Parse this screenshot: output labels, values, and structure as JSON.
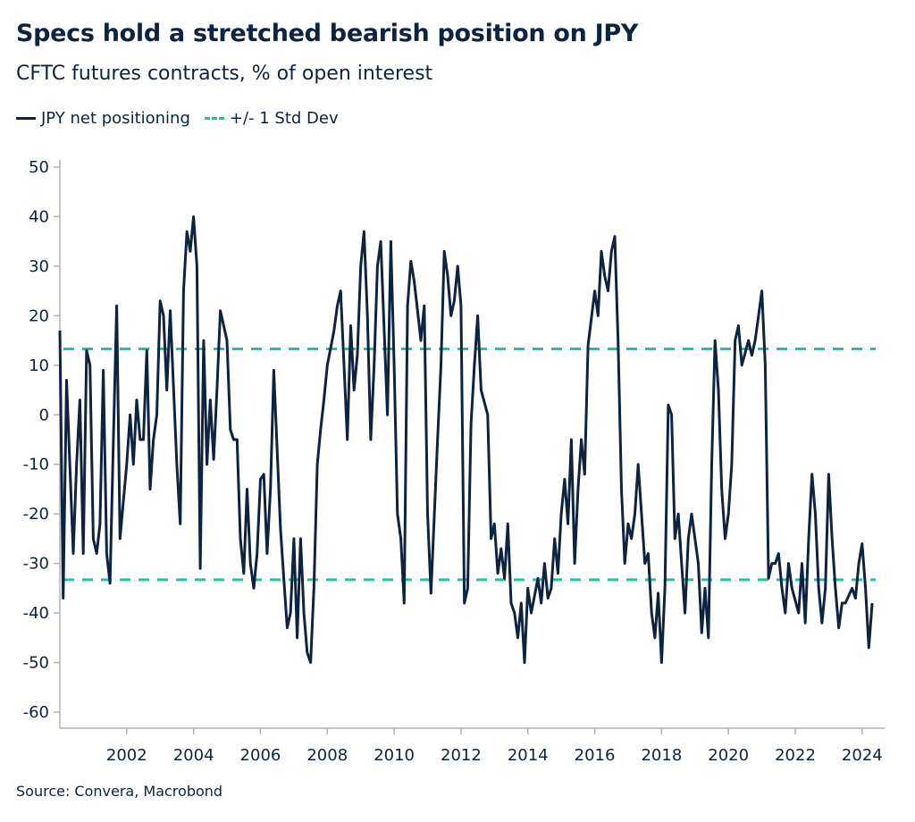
{
  "header": {
    "title": "Specs hold a stretched bearish position on JPY",
    "subtitle": "CFTC futures contracts, % of open interest"
  },
  "legend": {
    "series_label": "JPY net positioning",
    "band_label": "+/- 1 Std Dev"
  },
  "footer": {
    "source": "Source: Convera, Macrobond"
  },
  "colors": {
    "series": "#0d2340",
    "band": "#17c6ae",
    "axis": "#b0b0b0"
  },
  "chart_data": {
    "type": "line",
    "title": "Specs hold a stretched bearish position on JPY",
    "subtitle": "CFTC futures contracts, % of open interest",
    "xlabel": "",
    "ylabel": "",
    "xlim": [
      2000.0,
      2024.6
    ],
    "ylim": [
      -60,
      50
    ],
    "grid": false,
    "legend_position": "top-left",
    "y_ticks": [
      50,
      40,
      30,
      20,
      10,
      0,
      -10,
      -20,
      -30,
      -40,
      -50,
      -60
    ],
    "y_tick_labels": [
      "50",
      "40",
      "30",
      "20",
      "10",
      "0",
      "-10",
      "-20",
      "-30",
      "-40",
      "-50",
      "-60"
    ],
    "x_ticks": [
      2002,
      2004,
      2006,
      2008,
      2010,
      2012,
      2014,
      2016,
      2018,
      2020,
      2022,
      2024
    ],
    "x_tick_labels": [
      "2002",
      "2004",
      "2006",
      "2008",
      "2010",
      "2012",
      "2014",
      "2016",
      "2018",
      "2020",
      "2022",
      "2024"
    ],
    "reference_lines": [
      {
        "name": "+/- 1 Std Dev",
        "value": 13.3,
        "style": "dashed"
      },
      {
        "name": "+/- 1 Std Dev",
        "value": -33.3,
        "style": "dashed"
      }
    ],
    "series": [
      {
        "name": "JPY net positioning",
        "x": [
          2000.0,
          2000.1,
          2000.2,
          2000.4,
          2000.5,
          2000.6,
          2000.7,
          2000.8,
          2000.9,
          2001.0,
          2001.1,
          2001.2,
          2001.3,
          2001.4,
          2001.5,
          2001.6,
          2001.7,
          2001.8,
          2002.0,
          2002.1,
          2002.2,
          2002.3,
          2002.4,
          2002.5,
          2002.6,
          2002.7,
          2002.8,
          2002.9,
          2003.0,
          2003.1,
          2003.2,
          2003.3,
          2003.5,
          2003.6,
          2003.7,
          2003.8,
          2003.9,
          2004.0,
          2004.1,
          2004.2,
          2004.3,
          2004.4,
          2004.5,
          2004.6,
          2004.7,
          2004.8,
          2005.0,
          2005.1,
          2005.2,
          2005.3,
          2005.4,
          2005.5,
          2005.6,
          2005.7,
          2005.8,
          2005.9,
          2006.0,
          2006.1,
          2006.2,
          2006.3,
          2006.4,
          2006.6,
          2006.7,
          2006.8,
          2006.9,
          2007.0,
          2007.1,
          2007.2,
          2007.3,
          2007.4,
          2007.5,
          2007.6,
          2007.7,
          2007.8,
          2007.9,
          2008.0,
          2008.2,
          2008.3,
          2008.4,
          2008.5,
          2008.6,
          2008.7,
          2008.8,
          2008.9,
          2009.0,
          2009.1,
          2009.2,
          2009.3,
          2009.4,
          2009.5,
          2009.6,
          2009.8,
          2009.9,
          2010.0,
          2010.1,
          2010.2,
          2010.3,
          2010.4,
          2010.5,
          2010.6,
          2010.7,
          2010.8,
          2010.9,
          2011.0,
          2011.1,
          2011.3,
          2011.4,
          2011.5,
          2011.6,
          2011.7,
          2011.8,
          2011.9,
          2012.0,
          2012.1,
          2012.2,
          2012.3,
          2012.4,
          2012.5,
          2012.6,
          2012.8,
          2012.9,
          2013.0,
          2013.1,
          2013.2,
          2013.3,
          2013.4,
          2013.5,
          2013.6,
          2013.7,
          2013.8,
          2013.9,
          2014.0,
          2014.1,
          2014.3,
          2014.4,
          2014.5,
          2014.6,
          2014.7,
          2014.8,
          2014.9,
          2015.0,
          2015.1,
          2015.2,
          2015.3,
          2015.4,
          2015.5,
          2015.6,
          2015.7,
          2015.8,
          2016.0,
          2016.1,
          2016.2,
          2016.3,
          2016.4,
          2016.5,
          2016.6,
          2016.7,
          2016.8,
          2016.9,
          2017.0,
          2017.1,
          2017.2,
          2017.3,
          2017.5,
          2017.6,
          2017.7,
          2017.8,
          2017.9,
          2018.0,
          2018.1,
          2018.2,
          2018.3,
          2018.4,
          2018.5,
          2018.6,
          2018.7,
          2018.8,
          2018.9,
          2019.1,
          2019.2,
          2019.3,
          2019.4,
          2019.5,
          2019.6,
          2019.7,
          2019.8,
          2019.9,
          2020.0,
          2020.1,
          2020.2,
          2020.3,
          2020.4,
          2020.6,
          2020.7,
          2020.8,
          2020.9,
          2021.0,
          2021.1,
          2021.2,
          2021.3,
          2021.4,
          2021.5,
          2021.6,
          2021.7,
          2021.8,
          2021.9,
          2022.1,
          2022.2,
          2022.3,
          2022.4,
          2022.5,
          2022.6,
          2022.7,
          2022.8,
          2022.9,
          2023.0,
          2023.1,
          2023.2,
          2023.3,
          2023.4,
          2023.5,
          2023.7,
          2023.8,
          2023.9,
          2024.0,
          2024.1,
          2024.2,
          2024.3
        ],
        "y": [
          17,
          -37,
          7,
          -28,
          -10,
          3,
          -28,
          13,
          10,
          -25,
          -28,
          -22,
          9,
          -28,
          -34,
          -5,
          22,
          -25,
          -10,
          0,
          -10,
          3,
          -5,
          -5,
          13,
          -15,
          -5,
          0,
          23,
          20,
          5,
          21,
          -10,
          -22,
          25,
          37,
          33,
          40,
          30,
          -31,
          15,
          -10,
          3,
          -9,
          5,
          21,
          15,
          -3,
          -5,
          -5,
          -25,
          -32,
          -15,
          -30,
          -35,
          -28,
          -13,
          -12,
          -28,
          -15,
          9,
          -23,
          -33,
          -43,
          -40,
          -25,
          -45,
          -25,
          -40,
          -48,
          -50,
          -35,
          -10,
          -3,
          3,
          10,
          17,
          22,
          25,
          10,
          -5,
          18,
          5,
          12,
          30,
          37,
          20,
          -5,
          10,
          30,
          35,
          0,
          35,
          10,
          -20,
          -25,
          -38,
          22,
          31,
          27,
          21,
          15,
          22,
          -20,
          -36,
          -5,
          10,
          33,
          28,
          20,
          23,
          30,
          22,
          -38,
          -35,
          -2,
          10,
          20,
          5,
          0,
          -25,
          -22,
          -32,
          -27,
          -33,
          -22,
          -38,
          -40,
          -45,
          -38,
          -50,
          -35,
          -40,
          -33,
          -38,
          -30,
          -37,
          -35,
          -25,
          -32,
          -20,
          -13,
          -22,
          -5,
          -30,
          -15,
          -5,
          -12,
          14,
          25,
          20,
          33,
          28,
          25,
          33,
          36,
          15,
          -15,
          -30,
          -22,
          -25,
          -20,
          -10,
          -30,
          -28,
          -40,
          -45,
          -36,
          -50,
          -35,
          2,
          0,
          -25,
          -20,
          -30,
          -40,
          -25,
          -20,
          -30,
          -44,
          -35,
          -45,
          -10,
          15,
          5,
          -15,
          -25,
          -20,
          -10,
          15,
          18,
          10,
          15,
          12,
          15,
          20,
          25,
          10,
          -33,
          -30,
          -30,
          -28,
          -35,
          -40,
          -30,
          -35,
          -40,
          -30,
          -42,
          -25,
          -12,
          -20,
          -35,
          -42,
          -35,
          -12,
          -25,
          -35,
          -43,
          -38,
          -38,
          -35,
          -37,
          -30,
          -26,
          -35,
          -47,
          -38
        ]
      }
    ]
  }
}
